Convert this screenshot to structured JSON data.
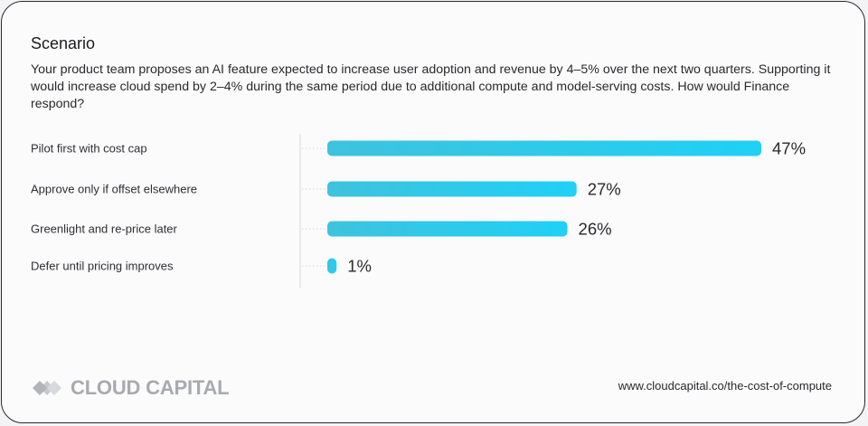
{
  "colors": {
    "bar_start": "#3ec3dd",
    "bar_end": "#20d0f6",
    "axis": "#d7d7db",
    "logo": "#a9aab0"
  },
  "scenario": {
    "title": "Scenario",
    "description": "Your product team proposes an AI feature expected to increase user adoption and revenue by 4–5% over the next two quarters. Supporting it would increase cloud spend by 2–4% during the same period due to additional compute and model-serving costs. How would Finance respond?"
  },
  "chart_data": {
    "type": "bar",
    "orientation": "horizontal",
    "categories": [
      "Pilot first with cost cap",
      "Approve only if offset elsewhere",
      "Greenlight and re-price later",
      "Defer until pricing improves"
    ],
    "values": [
      47,
      27,
      26,
      1
    ],
    "value_suffix": "%",
    "xlim": [
      0,
      47
    ],
    "title": "",
    "xlabel": "",
    "ylabel": ""
  },
  "footer": {
    "logo_text": "CLOUD CAPITAL",
    "logo_icon": "diamond-logo-icon",
    "url": "www.cloudcapital.co/the-cost-of-compute"
  }
}
